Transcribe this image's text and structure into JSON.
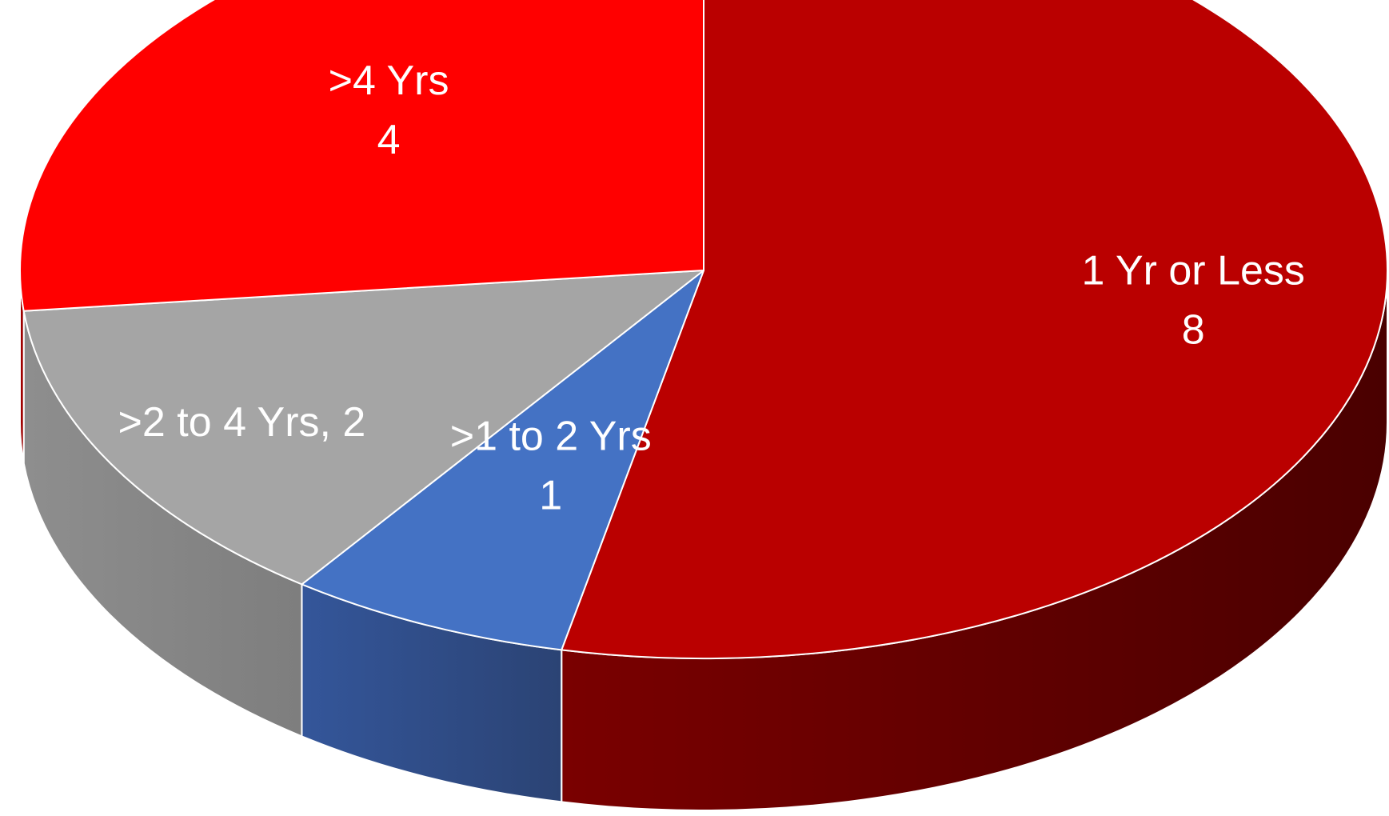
{
  "chart_data": {
    "type": "pie",
    "style": "3d",
    "title": "",
    "slices": [
      {
        "label": "1 Yr or Less",
        "value": 8,
        "color": "#BA0000",
        "side_dark": "#4A0000",
        "side_light": "#7A0000",
        "label_style": "stacked"
      },
      {
        "label": ">1 to 2 Yrs",
        "value": 1,
        "color": "#4472C4",
        "side_dark": "#2B4374",
        "side_light": "#34569A",
        "label_style": "stacked"
      },
      {
        "label": ">2 to 4 Yrs",
        "value": 2,
        "color": "#A5A5A5",
        "side_dark": "#7E7E7E",
        "side_light": "#8E8E8E",
        "label_style": "inline"
      },
      {
        "label": ">4 Yrs",
        "value": 4,
        "color": "#FF0000",
        "side_dark": "#8A0000",
        "side_light": "#B00000",
        "label_style": "stacked"
      }
    ],
    "start": "top",
    "direction": "clockwise",
    "legend": "none"
  }
}
